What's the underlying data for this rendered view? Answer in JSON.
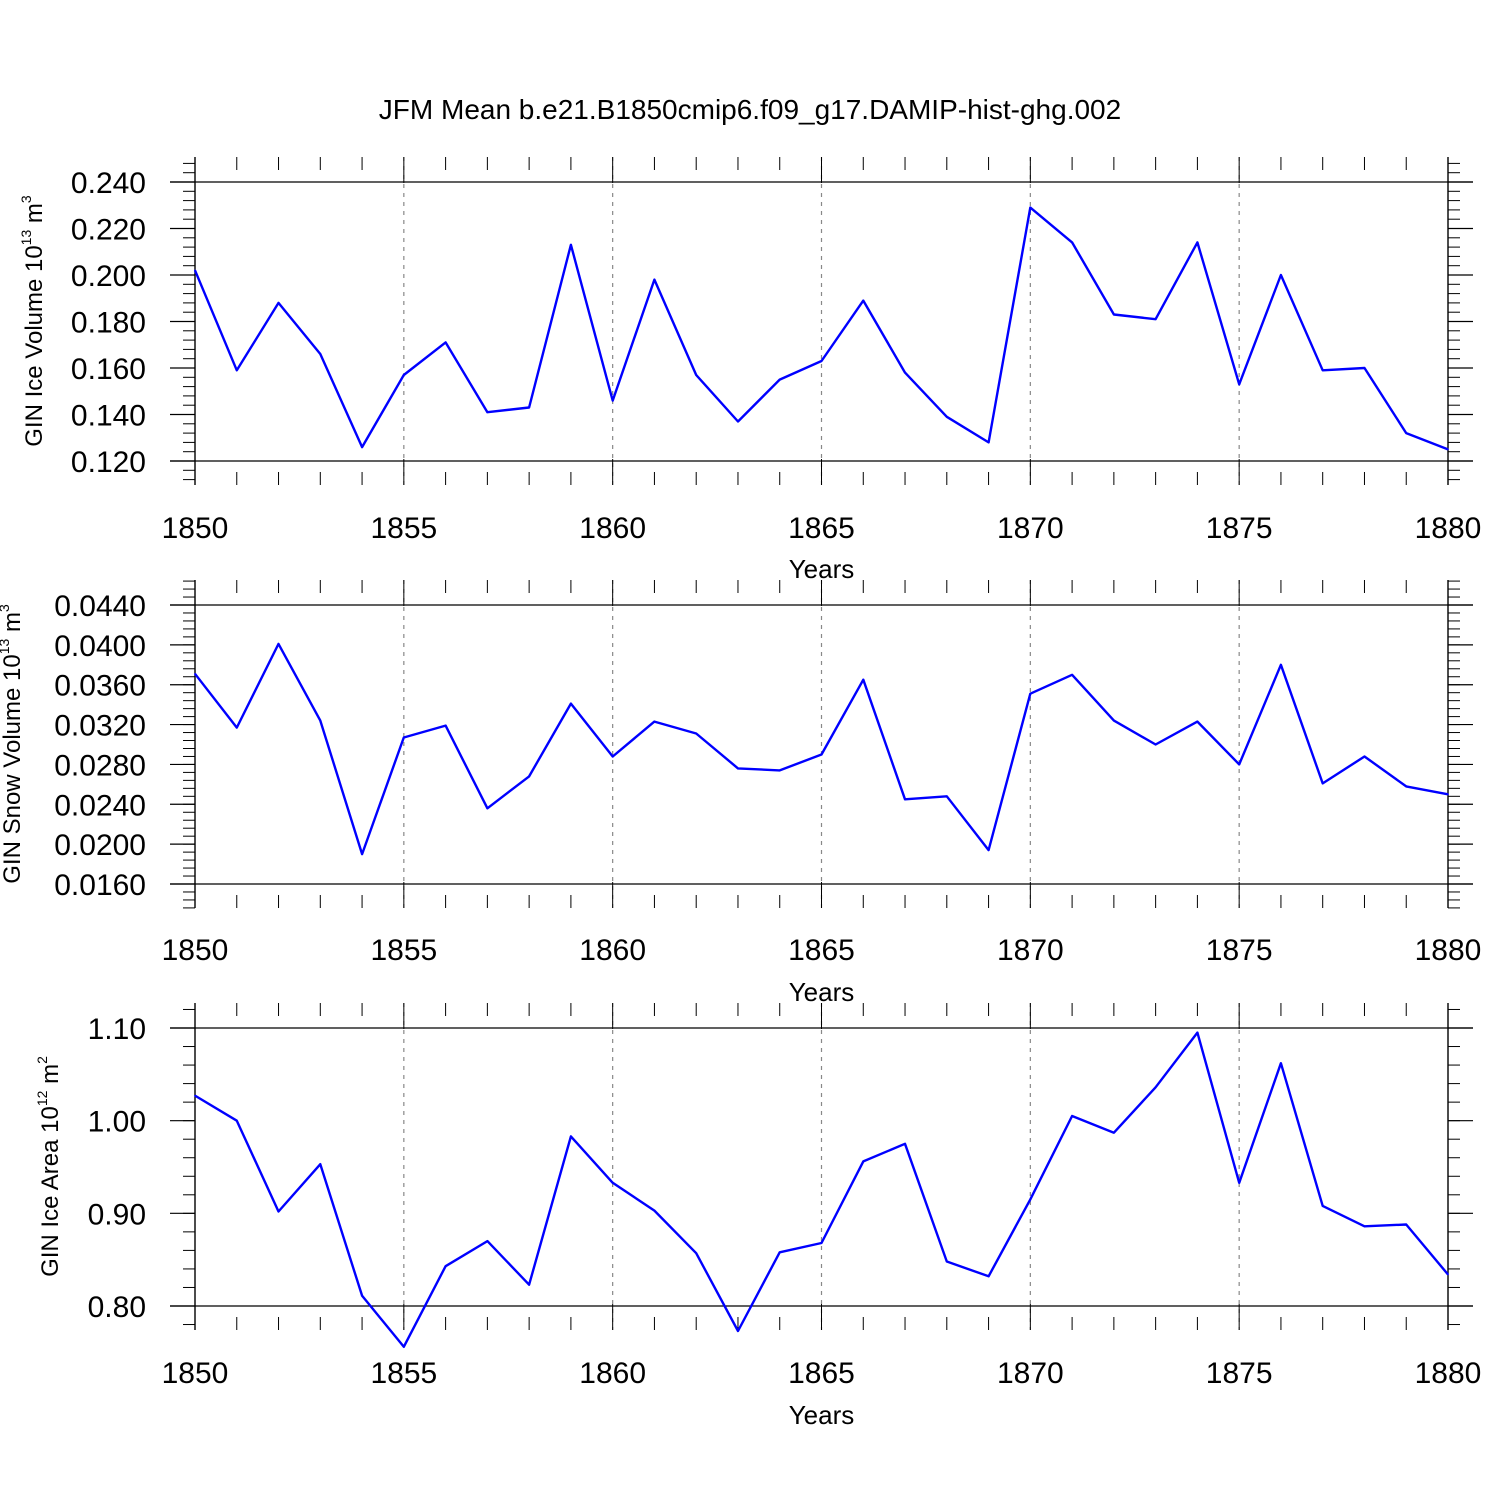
{
  "title": "JFM Mean b.e21.B1850cmip6.f09_g17.DAMIP-hist-ghg.002",
  "colors": {
    "line": "#0000ff",
    "axis": "#000000",
    "grid": "#888888"
  },
  "chart_data": [
    {
      "type": "line",
      "xlabel": "Years",
      "ylabel": {
        "main": "GIN Ice Volume 10",
        "exp": "13",
        "unit": " m",
        "unit_exp": "3"
      },
      "xlim": [
        1850,
        1880
      ],
      "ylim": [
        0.114,
        0.246
      ],
      "yticks": [
        0.12,
        0.14,
        0.16,
        0.18,
        0.2,
        0.22,
        0.24
      ],
      "ytick_labels": [
        "0.120",
        "0.140",
        "0.160",
        "0.180",
        "0.200",
        "0.220",
        "0.240"
      ],
      "xticks": [
        1850,
        1855,
        1860,
        1865,
        1870,
        1875,
        1880
      ],
      "xtick_labels": [
        "1850",
        "1855",
        "1860",
        "1865",
        "1870",
        "1875",
        "1880"
      ],
      "grid": "vertical-dashed",
      "series": [
        {
          "name": "GIN Ice Volume",
          "x": [
            1850,
            1851,
            1852,
            1853,
            1854,
            1855,
            1856,
            1857,
            1858,
            1859,
            1860,
            1861,
            1862,
            1863,
            1864,
            1865,
            1866,
            1867,
            1868,
            1869,
            1870,
            1871,
            1872,
            1873,
            1874,
            1875,
            1876,
            1877,
            1878,
            1879,
            1880
          ],
          "values": [
            0.202,
            0.159,
            0.188,
            0.166,
            0.126,
            0.157,
            0.171,
            0.141,
            0.143,
            0.213,
            0.146,
            0.198,
            0.157,
            0.137,
            0.155,
            0.163,
            0.189,
            0.158,
            0.139,
            0.128,
            0.229,
            0.214,
            0.183,
            0.181,
            0.214,
            0.153,
            0.2,
            0.159,
            0.16,
            0.132,
            0.125
          ]
        }
      ]
    },
    {
      "type": "line",
      "xlabel": "Years",
      "ylabel": {
        "main": "GIN Snow Volume 10",
        "exp": "13",
        "unit": " m",
        "unit_exp": "3"
      },
      "xlim": [
        1850,
        1880
      ],
      "ylim": [
        0.0146,
        0.0454
      ],
      "yticks": [
        0.016,
        0.02,
        0.024,
        0.028,
        0.032,
        0.036,
        0.04,
        0.044
      ],
      "ytick_labels": [
        "0.0160",
        "0.0200",
        "0.0240",
        "0.0280",
        "0.0320",
        "0.0360",
        "0.0400",
        "0.0440"
      ],
      "xticks": [
        1850,
        1855,
        1860,
        1865,
        1870,
        1875,
        1880
      ],
      "xtick_labels": [
        "1850",
        "1855",
        "1860",
        "1865",
        "1870",
        "1875",
        "1880"
      ],
      "grid": "vertical-dashed",
      "series": [
        {
          "name": "GIN Snow Volume",
          "x": [
            1850,
            1851,
            1852,
            1853,
            1854,
            1855,
            1856,
            1857,
            1858,
            1859,
            1860,
            1861,
            1862,
            1863,
            1864,
            1865,
            1866,
            1867,
            1868,
            1869,
            1870,
            1871,
            1872,
            1873,
            1874,
            1875,
            1876,
            1877,
            1878,
            1879,
            1880
          ],
          "values": [
            0.0371,
            0.0317,
            0.0401,
            0.0324,
            0.019,
            0.0307,
            0.0319,
            0.0236,
            0.0268,
            0.0341,
            0.0288,
            0.0323,
            0.0311,
            0.0276,
            0.0274,
            0.029,
            0.0365,
            0.0245,
            0.0248,
            0.0194,
            0.0351,
            0.037,
            0.0324,
            0.03,
            0.0323,
            0.028,
            0.038,
            0.0261,
            0.0288,
            0.0258,
            0.025
          ]
        }
      ]
    },
    {
      "type": "line",
      "xlabel": "Years",
      "ylabel": {
        "main": "GIN Ice Area 10",
        "exp": "12",
        "unit": " m",
        "unit_exp": "2"
      },
      "xlim": [
        1850,
        1880
      ],
      "ylim": [
        0.75,
        1.1
      ],
      "yticks": [
        0.8,
        0.9,
        1.0,
        1.1
      ],
      "ytick_labels": [
        "0.80",
        "0.90",
        "1.00",
        "1.10"
      ],
      "xticks": [
        1850,
        1855,
        1860,
        1865,
        1870,
        1875,
        1880
      ],
      "xtick_labels": [
        "1850",
        "1855",
        "1860",
        "1865",
        "1870",
        "1875",
        "1880"
      ],
      "grid": "vertical-dashed",
      "series": [
        {
          "name": "GIN Ice Area",
          "x": [
            1850,
            1851,
            1852,
            1853,
            1854,
            1855,
            1856,
            1857,
            1858,
            1859,
            1860,
            1861,
            1862,
            1863,
            1864,
            1865,
            1866,
            1867,
            1868,
            1869,
            1870,
            1871,
            1872,
            1873,
            1874,
            1875,
            1876,
            1877,
            1878,
            1879,
            1880
          ],
          "values": [
            1.027,
            1.0,
            0.902,
            0.953,
            0.811,
            0.756,
            0.843,
            0.87,
            0.823,
            0.983,
            0.933,
            0.903,
            0.857,
            0.773,
            0.858,
            0.868,
            0.956,
            0.975,
            0.848,
            0.832,
            0.915,
            1.005,
            0.987,
            1.036,
            1.095,
            0.933,
            1.062,
            0.908,
            0.886,
            0.888,
            0.834
          ]
        }
      ]
    }
  ]
}
